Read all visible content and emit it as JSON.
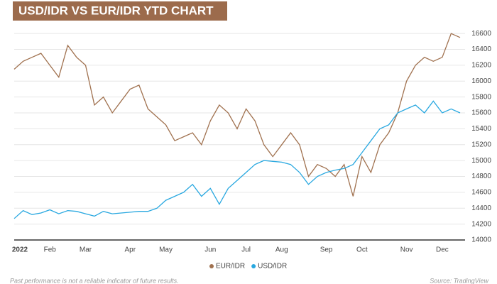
{
  "chart_data": {
    "type": "line",
    "title": "USD/IDR VS EUR/IDR YTD CHART",
    "note": "Past performance is not a reliable indicator of future results.",
    "source": "Source: TradingView",
    "categories": [
      "2022",
      null,
      null,
      null,
      "Feb",
      null,
      null,
      null,
      "Mar",
      null,
      null,
      null,
      null,
      "Apr",
      null,
      null,
      null,
      "May",
      null,
      null,
      null,
      null,
      "Jun",
      null,
      null,
      null,
      "Jul",
      null,
      null,
      null,
      "Aug",
      null,
      null,
      null,
      null,
      "Sep",
      null,
      null,
      null,
      "Oct",
      null,
      null,
      null,
      null,
      "Nov",
      null,
      null,
      null,
      "Dec",
      null,
      null
    ],
    "series": [
      {
        "name": "EUR/IDR",
        "color": "#a0714f",
        "values": [
          16150,
          16250,
          16300,
          16350,
          16200,
          16050,
          16450,
          16300,
          16200,
          15700,
          15800,
          15600,
          15750,
          15900,
          15950,
          15650,
          15550,
          15450,
          15250,
          15300,
          15350,
          15200,
          15500,
          15700,
          15600,
          15400,
          15650,
          15500,
          15200,
          15050,
          15200,
          15350,
          15200,
          14800,
          14950,
          14900,
          14800,
          14950,
          14550,
          15050,
          14850,
          15200,
          15350,
          15600,
          16000,
          16200,
          16300,
          16250,
          16300,
          16600,
          16550
        ]
      },
      {
        "name": "USD/IDR",
        "color": "#29a8e0",
        "values": [
          14270,
          14370,
          14320,
          14340,
          14380,
          14330,
          14370,
          14360,
          14330,
          14300,
          14360,
          14330,
          14340,
          14350,
          14360,
          14360,
          14400,
          14500,
          14550,
          14600,
          14700,
          14550,
          14650,
          14450,
          14650,
          14750,
          14850,
          14950,
          15000,
          14990,
          14980,
          14950,
          14850,
          14700,
          14800,
          14850,
          14880,
          14900,
          14950,
          15100,
          15250,
          15400,
          15450,
          15600,
          15650,
          15700,
          15600,
          15750,
          15600,
          15650,
          15600
        ]
      }
    ],
    "ylim": [
      14000,
      16700
    ],
    "yticks": [
      14000,
      14200,
      14400,
      14600,
      14800,
      15000,
      15200,
      15400,
      15600,
      15800,
      16000,
      16200,
      16400,
      16600
    ],
    "grid": true
  }
}
